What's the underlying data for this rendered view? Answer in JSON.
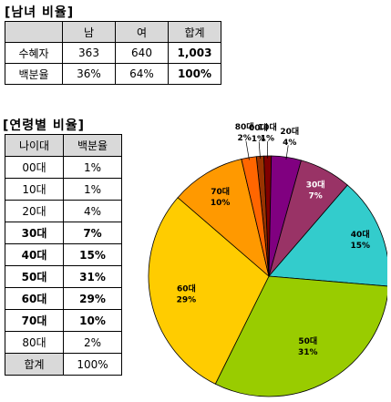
{
  "gender_section": {
    "title": "[남녀 비율]",
    "headers": [
      "",
      "남",
      "여",
      "합계"
    ],
    "rows": [
      {
        "label": "수혜자",
        "values": [
          "363",
          "640",
          "1,003"
        ]
      },
      {
        "label": "백분율",
        "values": [
          "36%",
          "64%",
          "100%"
        ]
      }
    ]
  },
  "age_section": {
    "title": "[연령별 비율]",
    "headers": [
      "나이대",
      "백분율"
    ],
    "rows": [
      {
        "label": "00대",
        "value": "1%",
        "bold": false
      },
      {
        "label": "10대",
        "value": "1%",
        "bold": false
      },
      {
        "label": "20대",
        "value": "4%",
        "bold": false
      },
      {
        "label": "30대",
        "value": "7%",
        "bold": true
      },
      {
        "label": "40대",
        "value": "15%",
        "bold": true
      },
      {
        "label": "50대",
        "value": "31%",
        "bold": true
      },
      {
        "label": "60대",
        "value": "29%",
        "bold": true
      },
      {
        "label": "70대",
        "value": "10%",
        "bold": true
      },
      {
        "label": "80대",
        "value": "2%",
        "bold": false
      },
      {
        "label": "합계",
        "value": "100%",
        "bold": false
      }
    ]
  },
  "chart_data": {
    "type": "pie",
    "title": "",
    "slices": [
      {
        "label": "00대",
        "pct_label": "1%",
        "value": 1,
        "color": "#993300"
      },
      {
        "label": "10대",
        "pct_label": "1%",
        "value": 1,
        "color": "#800000"
      },
      {
        "label": "20대",
        "pct_label": "4%",
        "value": 4,
        "color": "#800080"
      },
      {
        "label": "30대",
        "pct_label": "7%",
        "value": 7,
        "color": "#993366"
      },
      {
        "label": "40대",
        "pct_label": "15%",
        "value": 15,
        "color": "#33cccc"
      },
      {
        "label": "50대",
        "pct_label": "31%",
        "value": 31,
        "color": "#99cc00"
      },
      {
        "label": "60대",
        "pct_label": "29%",
        "value": 29,
        "color": "#ffcc00"
      },
      {
        "label": "70대",
        "pct_label": "10%",
        "value": 10,
        "color": "#ff9900"
      },
      {
        "label": "80대",
        "pct_label": "2%",
        "value": 2,
        "color": "#ff6600"
      }
    ],
    "label_color_on_dark": "#ffffff",
    "label_color_on_light": "#000000"
  }
}
